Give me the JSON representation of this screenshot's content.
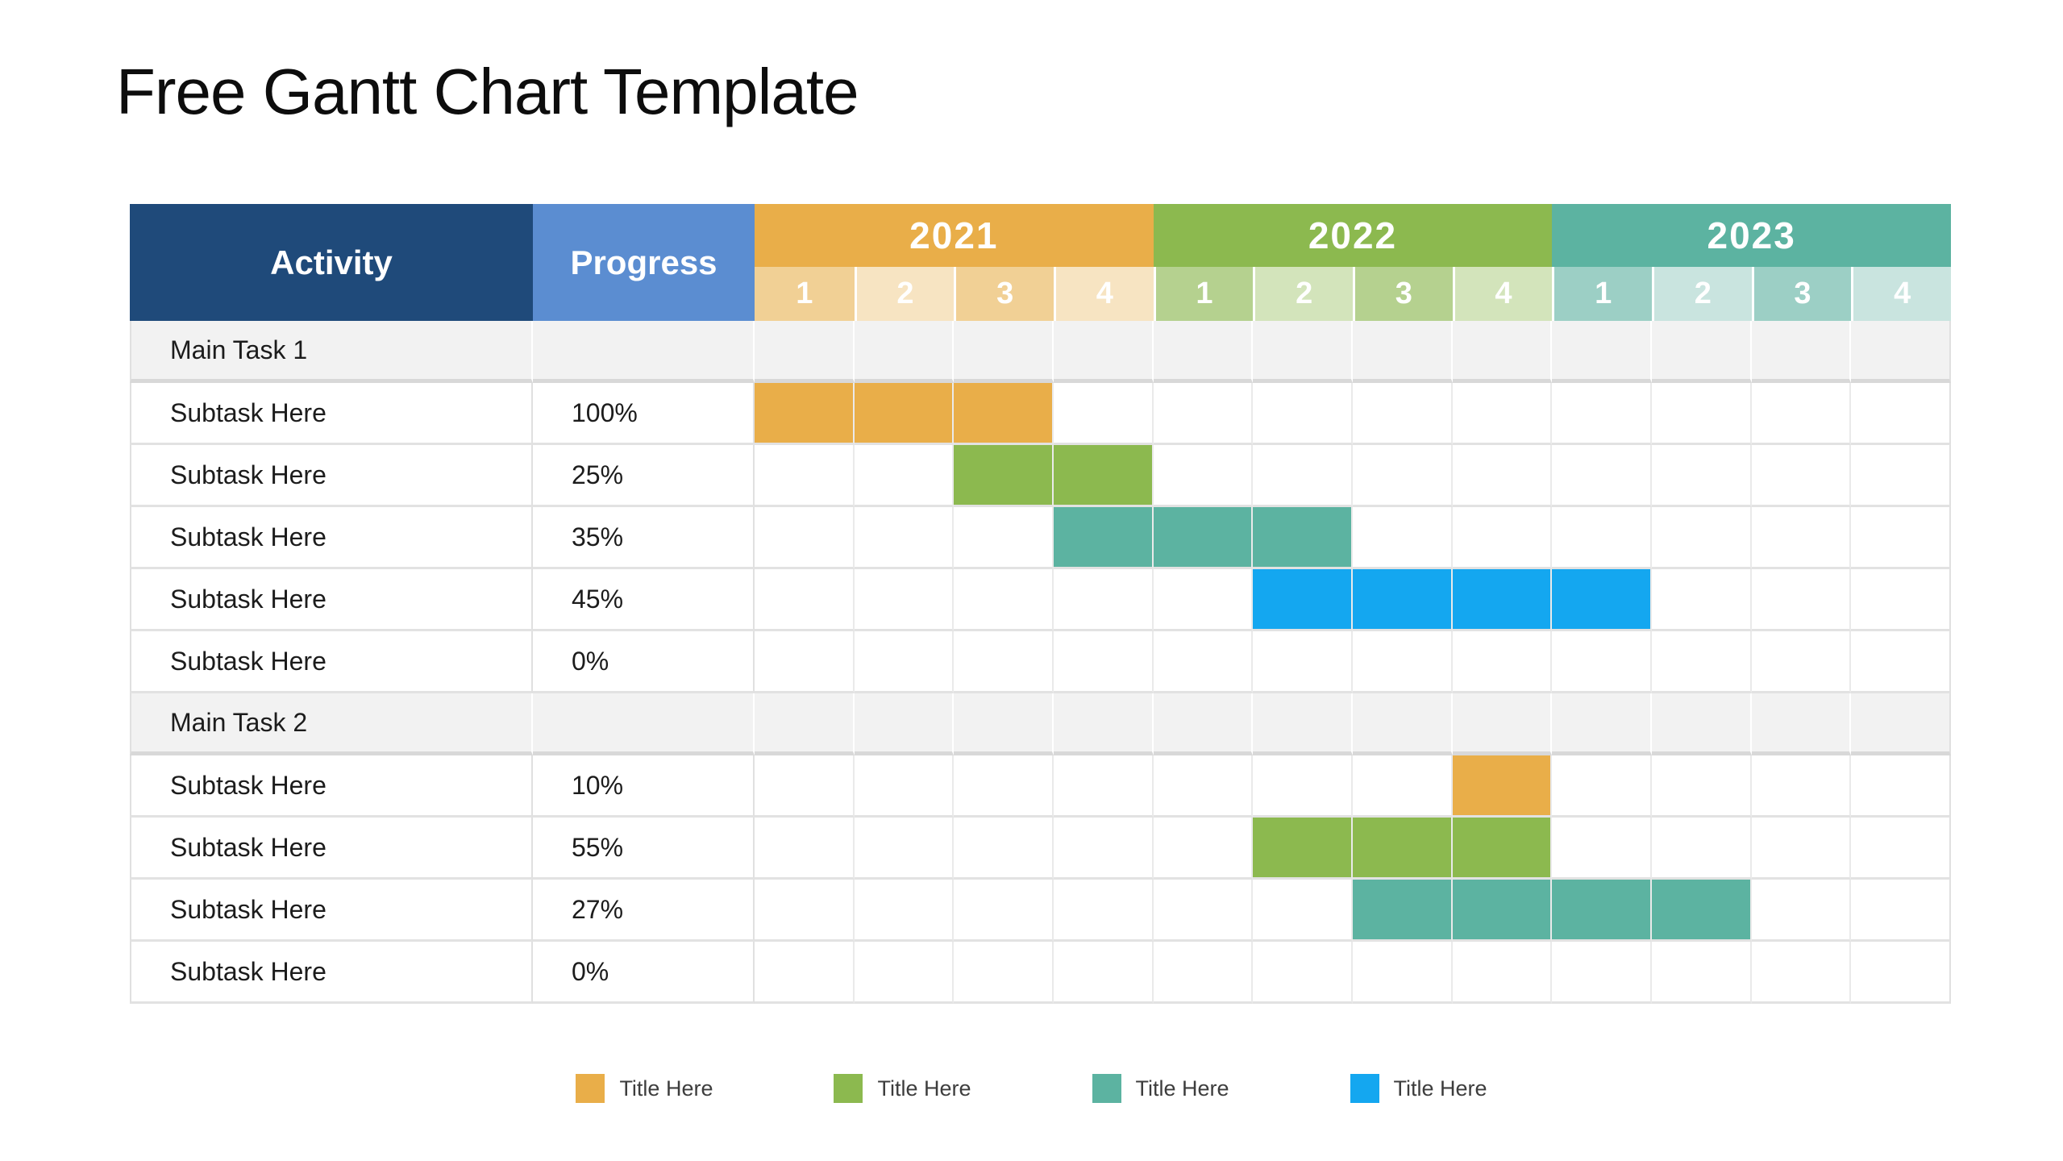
{
  "title": "Free Gantt Chart Template",
  "colors": {
    "navy": "#1F4A7A",
    "progress_blue": "#5B8DD1",
    "orange": "#E9AE49",
    "green": "#8CB94F",
    "teal": "#5CB3A1",
    "bar_blue": "#14A7F0",
    "orange_tint_dark": "#F1D095",
    "orange_tint_light": "#F7E4C2",
    "green_tint_dark": "#B5D18F",
    "green_tint_light": "#D3E4BB",
    "teal_tint_dark": "#9CCFC5",
    "teal_tint_light": "#C9E4DF",
    "main_row_bg": "#F2F2F2"
  },
  "table": {
    "header": {
      "activity": "Activity",
      "progress": "Progress",
      "quarters": [
        "1",
        "2",
        "3",
        "4"
      ],
      "years": [
        {
          "label": "2021",
          "color": "orange"
        },
        {
          "label": "2022",
          "color": "green"
        },
        {
          "label": "2023",
          "color": "teal"
        }
      ]
    },
    "rows": [
      {
        "type": "main",
        "activity": "Main Task 1",
        "progress": "",
        "bars": []
      },
      {
        "type": "sub",
        "activity": "Subtask Here",
        "progress": "100%",
        "bars": [
          {
            "start": 1,
            "span": 3,
            "color": "orange"
          }
        ]
      },
      {
        "type": "sub",
        "activity": "Subtask Here",
        "progress": "25%",
        "bars": [
          {
            "start": 3,
            "span": 2,
            "color": "green"
          }
        ]
      },
      {
        "type": "sub",
        "activity": "Subtask Here",
        "progress": "35%",
        "bars": [
          {
            "start": 4,
            "span": 3,
            "color": "teal"
          }
        ]
      },
      {
        "type": "sub",
        "activity": "Subtask Here",
        "progress": "45%",
        "bars": [
          {
            "start": 6,
            "span": 4,
            "color": "bar_blue"
          }
        ]
      },
      {
        "type": "sub",
        "activity": "Subtask Here",
        "progress": "0%",
        "bars": []
      },
      {
        "type": "main",
        "activity": "Main Task 2",
        "progress": "",
        "bars": []
      },
      {
        "type": "sub",
        "activity": "Subtask Here",
        "progress": "10%",
        "bars": [
          {
            "start": 8,
            "span": 1,
            "color": "orange"
          }
        ]
      },
      {
        "type": "sub",
        "activity": "Subtask Here",
        "progress": "55%",
        "bars": [
          {
            "start": 6,
            "span": 3,
            "color": "green"
          }
        ]
      },
      {
        "type": "sub",
        "activity": "Subtask Here",
        "progress": "27%",
        "bars": [
          {
            "start": 7,
            "span": 4,
            "color": "teal"
          }
        ]
      },
      {
        "type": "sub",
        "activity": "Subtask Here",
        "progress": "0%",
        "bars": []
      }
    ]
  },
  "legend": {
    "items": [
      {
        "label": "Title Here",
        "color": "orange"
      },
      {
        "label": "Title Here",
        "color": "green"
      },
      {
        "label": "Title Here",
        "color": "teal"
      },
      {
        "label": "Title Here",
        "color": "bar_blue"
      }
    ]
  },
  "chart_data": {
    "type": "table",
    "subtype": "gantt",
    "title": "Free Gantt Chart Template",
    "columns": [
      "Activity",
      "Progress",
      "2021 Q1",
      "2021 Q2",
      "2021 Q3",
      "2021 Q4",
      "2022 Q1",
      "2022 Q2",
      "2022 Q3",
      "2022 Q4",
      "2023 Q1",
      "2023 Q2",
      "2023 Q3",
      "2023 Q4"
    ],
    "tasks": [
      {
        "group": "Main Task 1",
        "name": "Subtask Here",
        "progress": "100%",
        "start": "2021 Q1",
        "end": "2021 Q3",
        "color": "#E9AE49"
      },
      {
        "group": "Main Task 1",
        "name": "Subtask Here",
        "progress": "25%",
        "start": "2021 Q3",
        "end": "2021 Q4",
        "color": "#8CB94F"
      },
      {
        "group": "Main Task 1",
        "name": "Subtask Here",
        "progress": "35%",
        "start": "2021 Q4",
        "end": "2022 Q2",
        "color": "#5CB3A1"
      },
      {
        "group": "Main Task 1",
        "name": "Subtask Here",
        "progress": "45%",
        "start": "2022 Q2",
        "end": "2023 Q1",
        "color": "#14A7F0"
      },
      {
        "group": "Main Task 1",
        "name": "Subtask Here",
        "progress": "0%",
        "start": null,
        "end": null,
        "color": null
      },
      {
        "group": "Main Task 2",
        "name": "Subtask Here",
        "progress": "10%",
        "start": "2022 Q4",
        "end": "2022 Q4",
        "color": "#E9AE49"
      },
      {
        "group": "Main Task 2",
        "name": "Subtask Here",
        "progress": "55%",
        "start": "2022 Q2",
        "end": "2022 Q4",
        "color": "#8CB94F"
      },
      {
        "group": "Main Task 2",
        "name": "Subtask Here",
        "progress": "27%",
        "start": "2022 Q3",
        "end": "2023 Q2",
        "color": "#5CB3A1"
      },
      {
        "group": "Main Task 2",
        "name": "Subtask Here",
        "progress": "0%",
        "start": null,
        "end": null,
        "color": null
      }
    ],
    "legend": [
      "Title Here",
      "Title Here",
      "Title Here",
      "Title Here"
    ],
    "legend_position": "bottom-center"
  }
}
